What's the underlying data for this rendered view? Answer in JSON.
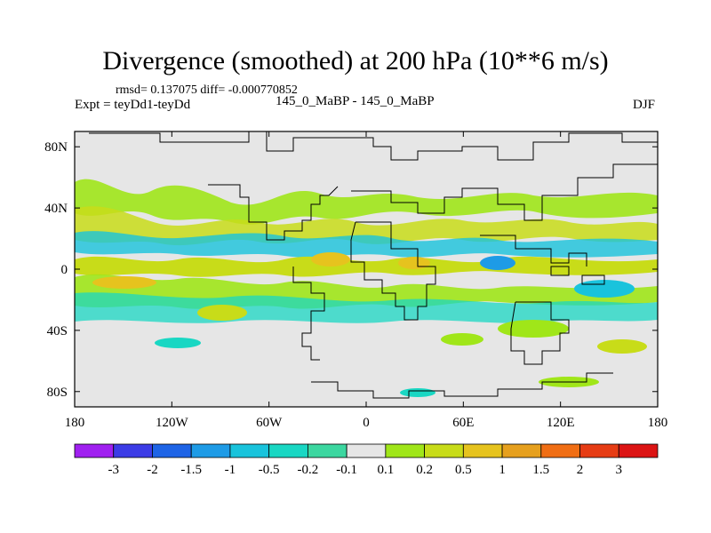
{
  "chart_data": {
    "type": "heatmap",
    "title": "Divergence (smoothed) at 200 hPa (10**6 m/s)",
    "stats_line": "rmsd= 0.137075 diff= -0.000770852",
    "left_label": "Expt = teyDd1-teyDd",
    "center_label": "145_0_MaBP - 145_0_MaBP",
    "right_label": "DJF",
    "x_axis": {
      "range": [
        -180,
        180
      ],
      "ticks": [
        -180,
        -120,
        -60,
        0,
        60,
        120,
        180
      ],
      "tick_labels": [
        "180",
        "120W",
        "60W",
        "0",
        "60E",
        "120E",
        "180"
      ]
    },
    "y_axis": {
      "range": [
        -90,
        90
      ],
      "ticks": [
        80,
        40,
        0,
        -40,
        -80
      ],
      "tick_labels": [
        "80N",
        "40N",
        "0",
        "40S",
        "80S"
      ]
    },
    "colorbar": {
      "labels": [
        "-3",
        "-2",
        "-1.5",
        "-1",
        "-0.5",
        "-0.2",
        "-0.1",
        "0.1",
        "0.2",
        "0.5",
        "1",
        "1.5",
        "2",
        "3"
      ],
      "colors": [
        "#a020f0",
        "#3c3ce6",
        "#1e64e6",
        "#1e9be6",
        "#19c3dc",
        "#19d7c3",
        "#3cd7a0",
        "#e6e6e6",
        "#a0e619",
        "#c8dc19",
        "#e6c31e",
        "#e6a01e",
        "#f06e14",
        "#e63c14",
        "#dc1414"
      ]
    },
    "features": [
      {
        "label": "NH subtropical band",
        "lon": [
          -180,
          180
        ],
        "lat_center": 20
      },
      {
        "label": "Equatorial band",
        "lon": [
          -180,
          180
        ],
        "lat_center": 0
      },
      {
        "label": "SH subtropical band",
        "lon": [
          -180,
          180
        ],
        "lat_center": -15
      }
    ],
    "land_background": "#e6e6e6"
  }
}
